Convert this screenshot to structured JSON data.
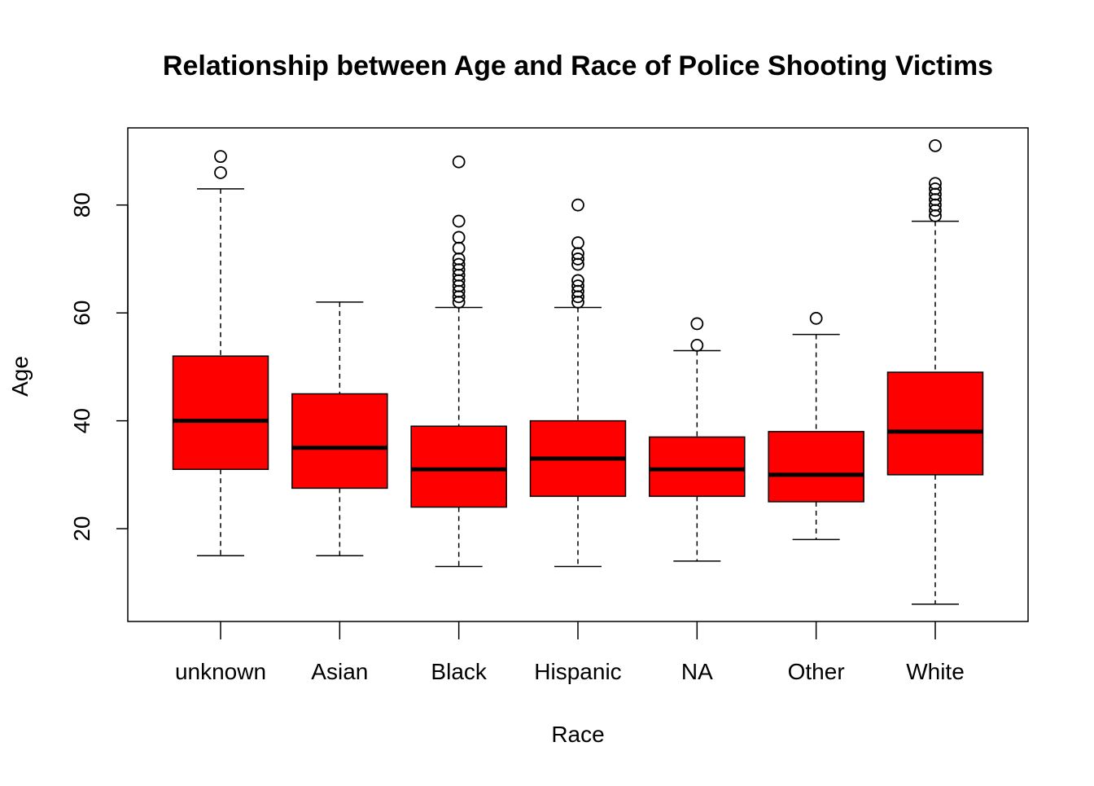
{
  "chart_data": {
    "type": "boxplot",
    "title": "Relationship between Age and Race of Police Shooting Victims",
    "xlabel": "Race",
    "ylabel": "Age",
    "ylim": [
      2.8,
      94.3
    ],
    "yticks": [
      20,
      40,
      60,
      80
    ],
    "grid": false,
    "box_color": "#ff0000",
    "categories": [
      "unknown",
      "Asian",
      "Black",
      "Hispanic",
      "NA",
      "Other",
      "White"
    ],
    "boxes": [
      {
        "category": "unknown",
        "whisker_low": 15,
        "q1": 31,
        "median": 40,
        "q3": 52,
        "whisker_high": 83,
        "outliers": [
          86,
          89
        ]
      },
      {
        "category": "Asian",
        "whisker_low": 15,
        "q1": 27.5,
        "median": 35,
        "q3": 45,
        "whisker_high": 62,
        "outliers": []
      },
      {
        "category": "Black",
        "whisker_low": 13,
        "q1": 24,
        "median": 31,
        "q3": 39,
        "whisker_high": 61,
        "outliers": [
          62,
          63,
          64,
          65,
          66,
          67,
          68,
          69,
          70,
          72,
          74,
          77,
          88
        ]
      },
      {
        "category": "Hispanic",
        "whisker_low": 13,
        "q1": 26,
        "median": 33,
        "q3": 40,
        "whisker_high": 61,
        "outliers": [
          62,
          63,
          64,
          65,
          66,
          69,
          70,
          71,
          73,
          80
        ]
      },
      {
        "category": "NA",
        "whisker_low": 14,
        "q1": 26,
        "median": 31,
        "q3": 37,
        "whisker_high": 53,
        "outliers": [
          54,
          58
        ]
      },
      {
        "category": "Other",
        "whisker_low": 18,
        "q1": 25,
        "median": 30,
        "q3": 38,
        "whisker_high": 56,
        "outliers": [
          59
        ]
      },
      {
        "category": "White",
        "whisker_low": 6,
        "q1": 30,
        "median": 38,
        "q3": 49,
        "whisker_high": 77,
        "outliers": [
          78,
          79,
          80,
          81,
          82,
          83,
          84,
          91
        ]
      }
    ]
  }
}
